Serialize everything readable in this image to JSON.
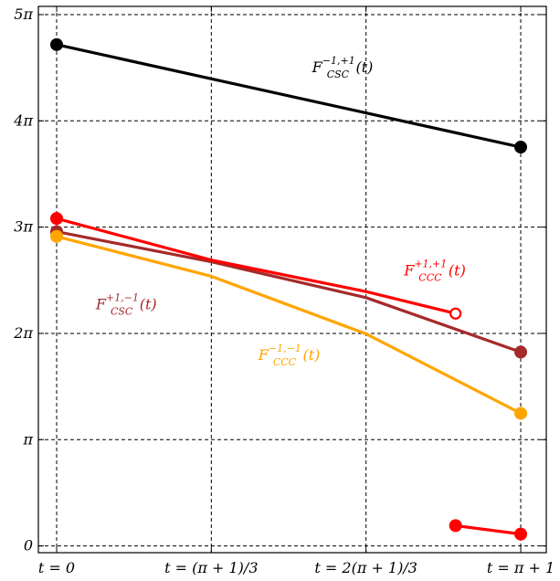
{
  "chart_data": {
    "type": "line",
    "x_categories": [
      "t = 0",
      "t = (π + 1)/3",
      "t = 2(π + 1)/3",
      "t = π + 1"
    ],
    "x_range": [
      0,
      4.1416
    ],
    "y_ticks": [
      {
        "value": 0,
        "label": "0"
      },
      {
        "value": 3.1416,
        "label": "π"
      },
      {
        "value": 6.2832,
        "label": "2π"
      },
      {
        "value": 9.4248,
        "label": "3π"
      },
      {
        "value": 12.5664,
        "label": "4π"
      },
      {
        "value": 15.708,
        "label": "5π"
      }
    ],
    "ylim": [
      -0.2,
      15.95
    ],
    "grid": true,
    "series": [
      {
        "name": "F_CSC^{-1,+1}(t)",
        "color": "#000000",
        "points": [
          [
            0,
            14.82
          ],
          [
            4.1416,
            11.79
          ]
        ],
        "start_marker": "filled",
        "end_marker": "filled"
      },
      {
        "name": "F_CSC^{+1,-1}(t)",
        "color": "#a52a2a",
        "points": [
          [
            0,
            9.29
          ],
          [
            1.381,
            8.4
          ],
          [
            2.761,
            7.34
          ],
          [
            4.1416,
            5.73
          ]
        ],
        "start_marker": "filled",
        "end_marker": "filled"
      },
      {
        "name": "F_CCC^{-1,-1}(t)",
        "color": "#ffa500",
        "points": [
          [
            0,
            9.15
          ],
          [
            1.381,
            7.97
          ],
          [
            2.761,
            6.27
          ],
          [
            4.1416,
            3.92
          ]
        ],
        "start_marker": "filled",
        "end_marker": "filled"
      },
      {
        "name": "F_CCC^{+1,+1}(t)",
        "color": "#ff0000",
        "points": [
          [
            0,
            9.68
          ],
          [
            1.381,
            8.45
          ],
          [
            2.761,
            7.52
          ],
          [
            3.56,
            6.87
          ]
        ],
        "start_marker": "filled",
        "end_marker": "open"
      },
      {
        "name": "",
        "color": "#ff0000",
        "points": [
          [
            3.56,
            0.6
          ],
          [
            4.1416,
            0.35
          ]
        ],
        "start_marker": "filled",
        "end_marker": "filled"
      }
    ],
    "labels": [
      {
        "base": "F",
        "sub": "CSC",
        "sup": "−1,+1",
        "arg": "(t)",
        "color": "#000000",
        "at": [
          2.28,
          14.0
        ]
      },
      {
        "base": "F",
        "sub": "CCC",
        "sup": "+1,+1",
        "arg": "(t)",
        "color": "#ff0000",
        "at": [
          3.1,
          8.0
        ]
      },
      {
        "base": "F",
        "sub": "CSC",
        "sup": "+1,−1",
        "arg": "(t)",
        "color": "#a52a2a",
        "at": [
          0.35,
          7.0
        ]
      },
      {
        "base": "F",
        "sub": "CCC",
        "sup": "−1,−1",
        "arg": "(t)",
        "color": "#ffa500",
        "at": [
          1.8,
          5.5
        ]
      }
    ]
  }
}
